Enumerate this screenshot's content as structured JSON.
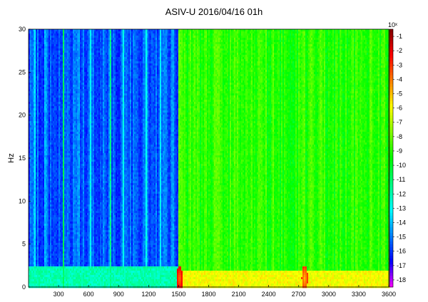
{
  "chart_data": {
    "type": "heatmap",
    "title": "ASIV-U 2016/04/16 01h",
    "xlabel": "",
    "ylabel": "Hz",
    "xlim": [
      0,
      3600
    ],
    "ylim": [
      0,
      30
    ],
    "x_ticks": [
      300,
      600,
      900,
      1200,
      1500,
      1800,
      2100,
      2400,
      2700,
      3000,
      3300,
      3600
    ],
    "y_ticks": [
      0,
      5,
      10,
      15,
      20,
      25,
      30
    ],
    "colorbar": {
      "exponent_label": "10ˣ",
      "range": [
        -18.5,
        -0.5
      ],
      "ticks": [
        -1,
        -2,
        -3,
        -4,
        -5,
        -6,
        -7,
        -8,
        -9,
        -10,
        -11,
        -12,
        -13,
        -14,
        -15,
        -16,
        -17,
        -18
      ],
      "colors": [
        "#ff00ff",
        "#0000ff",
        "#0080ff",
        "#00ffff",
        "#00ff80",
        "#00ff00",
        "#80ff00",
        "#ffff00",
        "#ff8000",
        "#ff0000",
        "#800000"
      ]
    },
    "segments": [
      {
        "x_start": 0,
        "x_end": 1500,
        "level_high_freq": -15.5,
        "level_low_freq": -12.0,
        "low_freq_band_hz": 2.5
      },
      {
        "x_start": 1500,
        "x_end": 3600,
        "level_high_freq": -9.0,
        "level_low_freq": -6.0,
        "low_freq_band_hz": 2.0
      }
    ],
    "vertical_streaks": [
      {
        "x": 60,
        "level": -12.5
      },
      {
        "x": 170,
        "level": -13.0
      },
      {
        "x": 350,
        "level": -10.5
      },
      {
        "x": 500,
        "level": -13.5
      },
      {
        "x": 620,
        "level": -13.0
      },
      {
        "x": 820,
        "level": -11.5
      },
      {
        "x": 950,
        "level": -12.5
      },
      {
        "x": 1180,
        "level": -12.0
      },
      {
        "x": 1320,
        "level": -13.0
      },
      {
        "x": 1440,
        "level": -13.5
      },
      {
        "x": 1510,
        "level": -7.5
      }
    ],
    "hot_spots": [
      {
        "x": 1510,
        "y": 1.0,
        "level": -4.0
      },
      {
        "x": 2760,
        "y": 1.0,
        "level": -5.0
      }
    ],
    "grid": false,
    "legend": "colorbar-right"
  }
}
